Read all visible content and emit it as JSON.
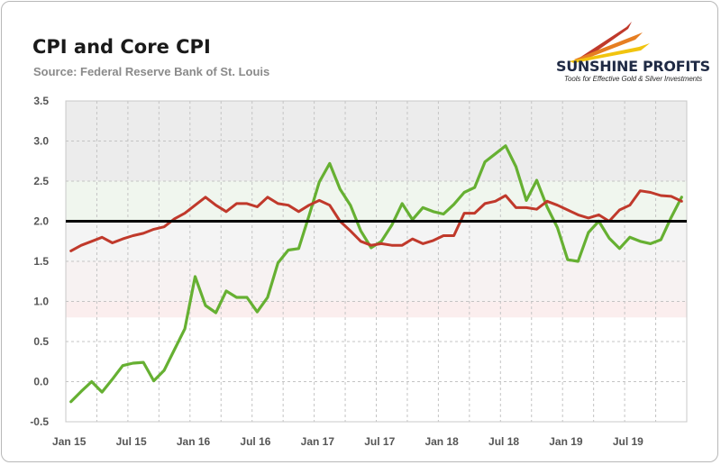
{
  "header": {
    "title": "CPI and Core CPI",
    "subtitle": "Source: Federal Reserve Bank of St. Louis"
  },
  "logo": {
    "name": "SUNSHINE PROFITS",
    "tagline": "Tools for Effective Gold & Silver Investments",
    "colors": [
      "#c0392b",
      "#e67e22",
      "#f1c40f"
    ]
  },
  "chart_data": {
    "type": "line",
    "x_tick_labels": [
      "Jan 15",
      "Jul 15",
      "Jan 16",
      "Jul 16",
      "Jan 17",
      "Jul 17",
      "Jan 18",
      "Jul 18",
      "Jan 19",
      "Jul 19"
    ],
    "y_ticks": [
      -0.5,
      0.0,
      0.5,
      1.0,
      1.5,
      2.0,
      2.5,
      3.0,
      3.5
    ],
    "y_tick_labels": [
      "-0.5",
      "0.0",
      "0.5",
      "1.0",
      "1.5",
      "2.0",
      "2.5",
      "3.0",
      "3.5"
    ],
    "ylim": [
      -0.5,
      3.5
    ],
    "n_points": 60,
    "reference_line": 2.0,
    "grid": true,
    "series": [
      {
        "color": "#66b032",
        "values": [
          -0.25,
          -0.12,
          0.0,
          -0.13,
          0.03,
          0.2,
          0.23,
          0.24,
          0.01,
          0.14,
          0.4,
          0.66,
          1.31,
          0.95,
          0.86,
          1.13,
          1.05,
          1.05,
          0.87,
          1.05,
          1.48,
          1.64,
          1.66,
          2.07,
          2.49,
          2.72,
          2.4,
          2.2,
          1.88,
          1.67,
          1.75,
          1.95,
          2.22,
          2.02,
          2.17,
          2.12,
          2.09,
          2.21,
          2.36,
          2.42,
          2.74,
          2.84,
          2.94,
          2.68,
          2.26,
          2.51,
          2.18,
          1.92,
          1.52,
          1.5,
          1.86,
          2.0,
          1.79,
          1.66,
          1.8,
          1.75,
          1.72,
          1.77,
          2.05,
          2.3
        ]
      },
      {
        "color": "#c0392b",
        "values": [
          1.63,
          1.7,
          1.75,
          1.8,
          1.73,
          1.78,
          1.82,
          1.85,
          1.9,
          1.93,
          2.03,
          2.1,
          2.2,
          2.3,
          2.2,
          2.12,
          2.22,
          2.22,
          2.18,
          2.3,
          2.22,
          2.2,
          2.12,
          2.2,
          2.26,
          2.2,
          2.0,
          1.88,
          1.75,
          1.7,
          1.72,
          1.7,
          1.7,
          1.78,
          1.72,
          1.76,
          1.82,
          1.82,
          2.1,
          2.1,
          2.22,
          2.25,
          2.32,
          2.17,
          2.17,
          2.15,
          2.25,
          2.2,
          2.14,
          2.08,
          2.04,
          2.08,
          2.0,
          2.14,
          2.2,
          2.38,
          2.36,
          2.32,
          2.31,
          2.25
        ]
      }
    ]
  }
}
